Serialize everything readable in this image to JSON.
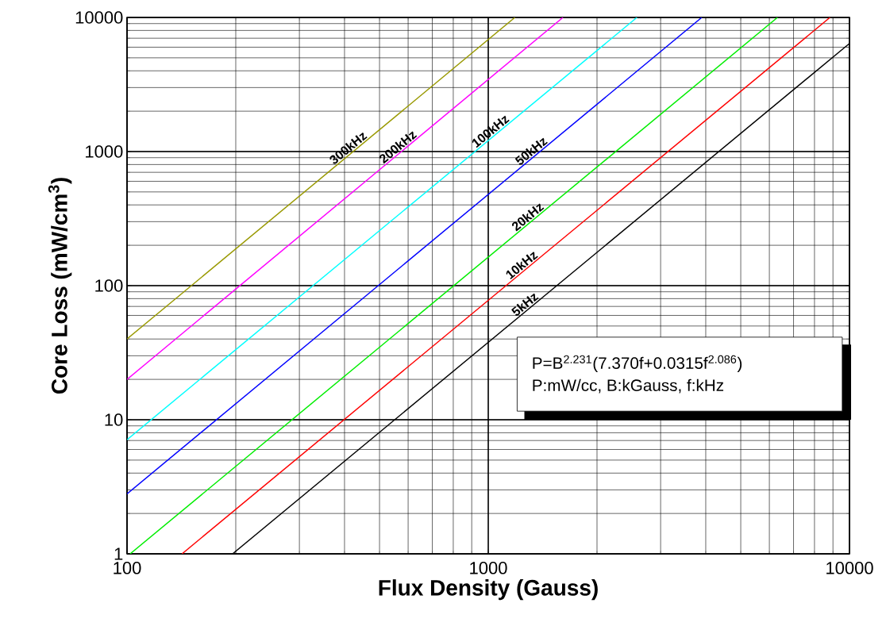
{
  "chart_data": {
    "type": "line",
    "xlabel": "Flux Density (Gauss)",
    "ylabel": "Core Loss (mW/cm$^{3}$)",
    "log": "xy",
    "grid": true,
    "marker": "none",
    "line_style": "solid",
    "xlim": [
      100,
      10000
    ],
    "ylim": [
      1,
      10000
    ],
    "xticks": [
      100,
      1000,
      10000
    ],
    "yticks": [
      1,
      10,
      100,
      1000,
      10000
    ],
    "series": [
      {
        "name": "5kHz",
        "color": "#000000",
        "x": [
          196,
          10000
        ],
        "values": [
          1,
          6400
        ]
      },
      {
        "name": "10kHz",
        "color": "#ff0000",
        "x": [
          142,
          8830
        ],
        "values": [
          1,
          10000
        ]
      },
      {
        "name": "20kHz",
        "color": "#00ee00",
        "x": [
          102,
          6320
        ],
        "values": [
          1,
          10000
        ]
      },
      {
        "name": "50kHz",
        "color": "#0000ff",
        "x": [
          100,
          3900
        ],
        "values": [
          2.8,
          10000
        ]
      },
      {
        "name": "100kHz",
        "color": "#00ffff",
        "x": [
          100,
          2580
        ],
        "values": [
          7.1,
          10000
        ]
      },
      {
        "name": "200kHz",
        "color": "#ff00ff",
        "x": [
          100,
          1610
        ],
        "values": [
          20,
          10000
        ]
      },
      {
        "name": "300kHz",
        "color": "#999900",
        "x": [
          100,
          1185
        ],
        "values": [
          40,
          10000
        ]
      }
    ],
    "annotations": [
      "P=B$^{2.231}$(7.370f+0.0315f$^{2.086}$)",
      "P:mW/cc, B:kGauss, f:kHz"
    ]
  }
}
